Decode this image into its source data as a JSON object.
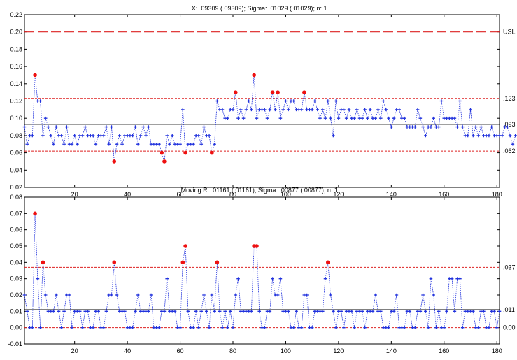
{
  "chart_data": [
    {
      "type": "line",
      "title": "X: .09309 (.09309); Sigma: .01029 (.01029); n: 1.",
      "xlim": [
        1,
        181
      ],
      "ylim": [
        0.02,
        0.22
      ],
      "x_ticks": [
        20,
        40,
        60,
        80,
        100,
        120,
        140,
        160,
        180
      ],
      "y_ticks": [
        "0.02",
        "0.04",
        "0.06",
        "0.08",
        "0.10",
        "0.12",
        "0.14",
        "0.16",
        "0.18",
        "0.20",
        "0.22"
      ],
      "grid": false,
      "colors": {
        "series": "#2233dd",
        "outlier": "#ee1111",
        "limit": "#dd2222",
        "center": "#000000",
        "spec": "#dd2222"
      },
      "spec_line": {
        "value": 0.2,
        "label": "USL"
      },
      "center_line": {
        "value": 0.093,
        "label": ".093"
      },
      "upper_control_limit": {
        "value": 0.123,
        "label": ".123"
      },
      "lower_control_limit": {
        "value": 0.062,
        "label": ".062"
      },
      "series": [
        {
          "values": [
            0.09,
            0.07,
            0.08,
            0.08,
            0.15,
            0.12,
            0.12,
            0.08,
            0.1,
            0.09,
            0.08,
            0.07,
            0.09,
            0.08,
            0.08,
            0.07,
            0.09,
            0.07,
            0.07,
            0.08,
            0.07,
            0.08,
            0.08,
            0.09,
            0.08,
            0.08,
            0.08,
            0.07,
            0.08,
            0.08,
            0.08,
            0.09,
            0.07,
            0.09,
            0.05,
            0.07,
            0.08,
            0.07,
            0.08,
            0.08,
            0.08,
            0.08,
            0.09,
            0.07,
            0.08,
            0.09,
            0.08,
            0.09,
            0.07,
            0.07,
            0.07,
            0.07,
            0.06,
            0.05,
            0.08,
            0.07,
            0.08,
            0.07,
            0.07,
            0.07,
            0.11,
            0.06,
            0.07,
            0.07,
            0.07,
            0.08,
            0.08,
            0.07,
            0.09,
            0.08,
            0.08,
            0.06,
            0.07,
            0.12,
            0.11,
            0.11,
            0.1,
            0.1,
            0.11,
            0.11,
            0.13,
            0.1,
            0.11,
            0.1,
            0.11,
            0.12,
            0.11,
            0.15,
            0.1,
            0.11,
            0.11,
            0.11,
            0.1,
            0.11,
            0.13,
            0.11,
            0.13,
            0.1,
            0.11,
            0.12,
            0.11,
            0.12,
            0.12,
            0.11,
            0.11,
            0.11,
            0.13,
            0.11,
            0.11,
            0.11,
            0.12,
            0.11,
            0.1,
            0.11,
            0.1,
            0.12,
            0.1,
            0.08,
            0.12,
            0.1,
            0.11,
            0.11,
            0.1,
            0.11,
            0.1,
            0.1,
            0.11,
            0.1,
            0.1,
            0.11,
            0.1,
            0.11,
            0.1,
            0.1,
            0.11,
            0.1,
            0.12,
            0.11,
            0.1,
            0.09,
            0.1,
            0.11,
            0.11,
            0.1,
            0.1,
            0.09,
            0.09,
            0.09,
            0.09,
            0.11,
            0.1,
            0.09,
            0.08,
            0.09,
            0.09,
            0.1,
            0.09,
            0.09,
            0.12,
            0.1,
            0.1,
            0.1,
            0.1,
            0.1,
            0.09,
            0.12,
            0.09,
            0.08,
            0.08,
            0.11,
            0.08,
            0.09,
            0.08,
            0.09,
            0.08,
            0.08,
            0.08,
            0.09,
            0.08,
            0.08,
            0.08,
            0.08,
            0.09,
            0.09,
            0.08,
            0.07,
            0.08
          ],
          "outlier_indices": [
            5,
            35,
            53,
            54,
            62,
            72,
            81,
            88,
            95,
            97,
            107
          ]
        }
      ]
    },
    {
      "type": "line",
      "title": "Moving R: .01161 (.01161); Sigma: .00877 (.00877); n: 1.",
      "xlim": [
        1,
        181
      ],
      "ylim": [
        -0.01,
        0.08
      ],
      "x_ticks": [
        20,
        40,
        60,
        80,
        100,
        120,
        140,
        160,
        180
      ],
      "y_ticks": [
        "-0.01",
        "0.00",
        "0.01",
        "0.02",
        "0.03",
        "0.04",
        "0.05",
        "0.06",
        "0.07",
        "0.08"
      ],
      "grid": false,
      "colors": {
        "series": "#2233dd",
        "outlier": "#ee1111",
        "limit": "#dd2222",
        "center": "#000000"
      },
      "center_line": {
        "value": 0.011,
        "label": ".011"
      },
      "upper_control_limit": {
        "value": 0.037,
        "label": ".037"
      },
      "lower_control_limit": {
        "value": 0.0,
        "label": "0.00"
      },
      "series": [
        {
          "values": [
            0.02,
            0.01,
            0.0,
            0.0,
            0.07,
            0.03,
            0.0,
            0.04,
            0.02,
            0.01,
            0.01,
            0.01,
            0.02,
            0.01,
            0.0,
            0.01,
            0.02,
            0.02,
            0.0,
            0.01,
            0.01,
            0.01,
            0.0,
            0.01,
            0.01,
            0.0,
            0.0,
            0.01,
            0.01,
            0.0,
            0.0,
            0.01,
            0.02,
            0.02,
            0.04,
            0.02,
            0.01,
            0.01,
            0.01,
            0.0,
            0.0,
            0.0,
            0.01,
            0.02,
            0.01,
            0.01,
            0.01,
            0.01,
            0.02,
            0.0,
            0.0,
            0.0,
            0.01,
            0.01,
            0.03,
            0.01,
            0.01,
            0.01,
            0.0,
            0.0,
            0.04,
            0.05,
            0.01,
            0.0,
            0.0,
            0.01,
            0.0,
            0.01,
            0.02,
            0.01,
            0.0,
            0.02,
            0.01,
            0.04,
            0.01,
            0.0,
            0.01,
            0.0,
            0.01,
            0.0,
            0.02,
            0.03,
            0.01,
            0.01,
            0.01,
            0.01,
            0.01,
            0.05,
            0.05,
            0.01,
            0.0,
            0.0,
            0.01,
            0.01,
            0.03,
            0.02,
            0.02,
            0.03,
            0.01,
            0.01,
            0.01,
            0.0,
            0.0,
            0.01,
            0.0,
            0.0,
            0.02,
            0.02,
            0.0,
            0.0,
            0.01,
            0.01,
            0.01,
            0.01,
            0.03,
            0.04,
            0.02,
            0.01,
            0.0,
            0.01,
            0.01,
            0.0,
            0.01,
            0.01,
            0.01,
            0.0,
            0.01,
            0.01,
            0.01,
            0.0,
            0.01,
            0.01,
            0.01,
            0.02,
            0.01,
            0.01,
            0.0,
            0.0,
            0.0,
            0.01,
            0.01,
            0.02,
            0.0,
            0.0,
            0.0,
            0.01,
            0.01,
            0.0,
            0.0,
            0.01,
            0.01,
            0.02,
            0.01,
            0.0,
            0.03,
            0.02,
            0.0,
            0.01,
            0.0,
            0.0,
            0.01,
            0.03,
            0.03,
            0.01,
            0.03,
            0.03,
            0.0,
            0.01,
            0.01,
            0.01,
            0.01,
            0.0,
            0.0,
            0.01,
            0.01,
            0.0,
            0.0,
            0.01,
            0.01,
            0.0,
            0.01
          ]
        }
      ]
    }
  ]
}
